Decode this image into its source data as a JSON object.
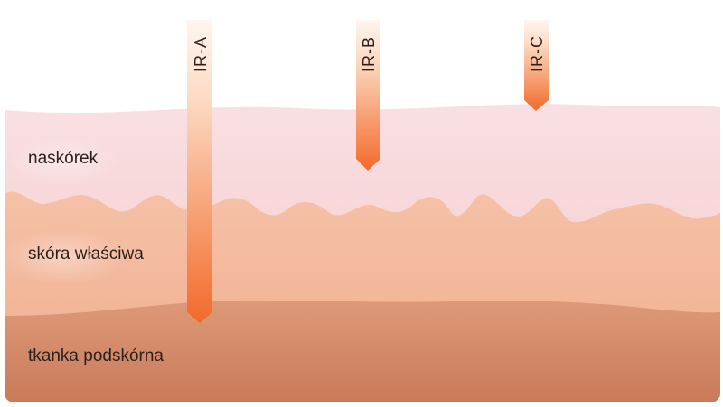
{
  "layers": [
    {
      "id": "epidermis",
      "label": "naskórek",
      "color": "#f6cdd0"
    },
    {
      "id": "dermis",
      "label": "skóra właściwa",
      "color": "#f3b293"
    },
    {
      "id": "hypodermis",
      "label": "tkanka podskórna",
      "color": "#d48766"
    }
  ],
  "rays": [
    {
      "label": "IR-A",
      "penetrates_to": "tkanka podskórna"
    },
    {
      "label": "IR-B",
      "penetrates_to": "naskórek"
    },
    {
      "label": "IR-C",
      "penetrates_to": "naskórek"
    }
  ],
  "colors": {
    "ray_start": "#fff6ef",
    "ray_end": "#f26a2a",
    "text": "#2a1f1c"
  }
}
